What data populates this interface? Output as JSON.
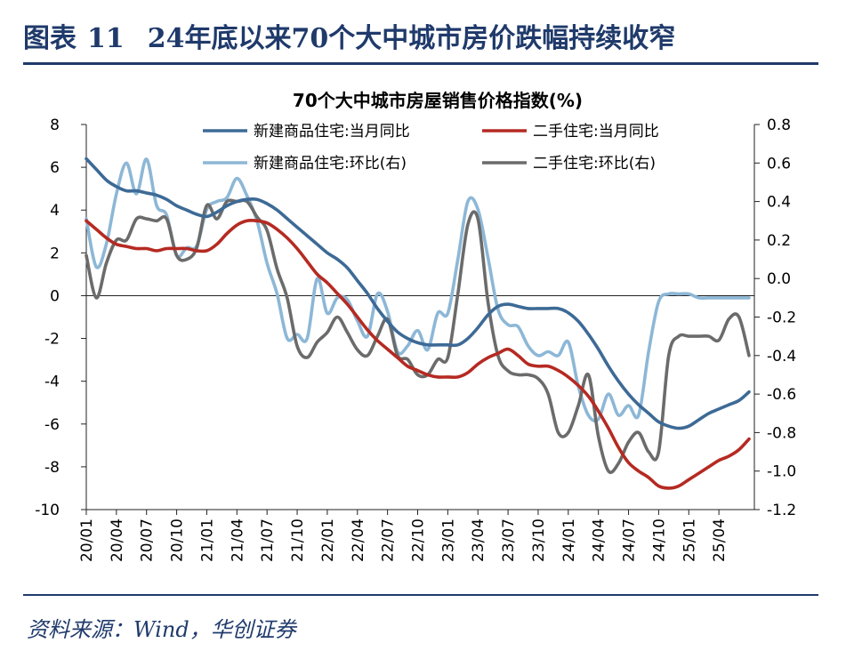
{
  "header": {
    "prefix": "图表",
    "number": "11",
    "title": "24年底以来70个大中城市房价跌幅持续收窄"
  },
  "footer": {
    "source": "资料来源：Wind，华创证券"
  },
  "colors": {
    "navy": "#1f3a6b",
    "series": [
      "#3d6a96",
      "#b52a22",
      "#8db7d6",
      "#6b6b6b"
    ]
  },
  "chart_data": {
    "type": "line",
    "title": "70个大中城市房屋销售价格指数(%)",
    "x": [
      "20/01",
      "20/04",
      "20/07",
      "20/10",
      "21/01",
      "21/04",
      "21/07",
      "21/10",
      "22/01",
      "22/04",
      "22/07",
      "22/10",
      "23/01",
      "23/04",
      "23/07",
      "23/10",
      "24/01",
      "24/04",
      "24/07",
      "24/10",
      "25/01",
      "25/04"
    ],
    "x_range": [
      "20/01",
      "25/04"
    ],
    "yleft": {
      "ylim": [
        -10,
        8
      ],
      "ticks": [
        "8",
        "6",
        "4",
        "2",
        "0",
        "-2",
        "-4",
        "-6",
        "-8",
        "-10"
      ]
    },
    "yright": {
      "ylim": [
        -1.2,
        0.8
      ],
      "ticks": [
        "0.8",
        "0.6",
        "0.4",
        "0.2",
        "0.0",
        "-0.2",
        "-0.4",
        "-0.6",
        "-0.8",
        "-1.0",
        "-1.2"
      ]
    },
    "grid": false,
    "legend": "top-center, two columns",
    "series": [
      {
        "name": "新建商品住宅:当月同比",
        "axis": "left",
        "points": [
          [
            0,
            6.4
          ],
          [
            1,
            5.9
          ],
          [
            2,
            5.4
          ],
          [
            3,
            5.1
          ],
          [
            4,
            4.9
          ],
          [
            5,
            4.9
          ],
          [
            6,
            4.8
          ],
          [
            7,
            4.7
          ],
          [
            8,
            4.5
          ],
          [
            9,
            4.2
          ],
          [
            10,
            4.0
          ],
          [
            11,
            3.8
          ],
          [
            12,
            3.7
          ],
          [
            13,
            3.9
          ],
          [
            14,
            4.2
          ],
          [
            15,
            4.4
          ],
          [
            16,
            4.5
          ],
          [
            17,
            4.5
          ],
          [
            18,
            4.3
          ],
          [
            19,
            4.0
          ],
          [
            20,
            3.6
          ],
          [
            21,
            3.2
          ],
          [
            22,
            2.8
          ],
          [
            23,
            2.4
          ],
          [
            24,
            2.0
          ],
          [
            25,
            1.7
          ],
          [
            26,
            1.3
          ],
          [
            27,
            0.7
          ],
          [
            28,
            0.1
          ],
          [
            29,
            -0.6
          ],
          [
            30,
            -1.2
          ],
          [
            31,
            -1.7
          ],
          [
            32,
            -2.0
          ],
          [
            33,
            -2.2
          ],
          [
            34,
            -2.3
          ],
          [
            35,
            -2.3
          ],
          [
            36,
            -2.3
          ],
          [
            37,
            -2.3
          ],
          [
            38,
            -2.0
          ],
          [
            39,
            -1.5
          ],
          [
            40,
            -0.9
          ],
          [
            41,
            -0.5
          ],
          [
            42,
            -0.4
          ],
          [
            43,
            -0.5
          ],
          [
            44,
            -0.6
          ],
          [
            45,
            -0.6
          ],
          [
            46,
            -0.6
          ],
          [
            47,
            -0.6
          ],
          [
            48,
            -0.8
          ],
          [
            49,
            -1.2
          ],
          [
            50,
            -1.8
          ],
          [
            51,
            -2.5
          ],
          [
            52,
            -3.3
          ],
          [
            53,
            -4.0
          ],
          [
            54,
            -4.6
          ],
          [
            55,
            -5.1
          ],
          [
            56,
            -5.5
          ],
          [
            57,
            -5.9
          ],
          [
            58,
            -6.1
          ],
          [
            59,
            -6.2
          ],
          [
            60,
            -6.1
          ],
          [
            61,
            -5.8
          ],
          [
            62,
            -5.5
          ],
          [
            63,
            -5.3
          ],
          [
            64,
            -5.1
          ],
          [
            65,
            -4.9
          ],
          [
            66,
            -4.5
          ]
        ]
      },
      {
        "name": "二手住宅:当月同比",
        "axis": "left",
        "points": [
          [
            0,
            3.5
          ],
          [
            1,
            3.1
          ],
          [
            2,
            2.7
          ],
          [
            3,
            2.4
          ],
          [
            4,
            2.3
          ],
          [
            5,
            2.2
          ],
          [
            6,
            2.2
          ],
          [
            7,
            2.1
          ],
          [
            8,
            2.2
          ],
          [
            9,
            2.2
          ],
          [
            10,
            2.2
          ],
          [
            11,
            2.1
          ],
          [
            12,
            2.1
          ],
          [
            13,
            2.4
          ],
          [
            14,
            2.9
          ],
          [
            15,
            3.3
          ],
          [
            16,
            3.5
          ],
          [
            17,
            3.5
          ],
          [
            18,
            3.4
          ],
          [
            19,
            3.1
          ],
          [
            20,
            2.7
          ],
          [
            21,
            2.2
          ],
          [
            22,
            1.6
          ],
          [
            23,
            1.0
          ],
          [
            24,
            0.6
          ],
          [
            25,
            0.1
          ],
          [
            26,
            -0.4
          ],
          [
            27,
            -1.0
          ],
          [
            28,
            -1.6
          ],
          [
            29,
            -2.1
          ],
          [
            30,
            -2.5
          ],
          [
            31,
            -2.9
          ],
          [
            32,
            -3.3
          ],
          [
            33,
            -3.5
          ],
          [
            34,
            -3.7
          ],
          [
            35,
            -3.8
          ],
          [
            36,
            -3.8
          ],
          [
            37,
            -3.8
          ],
          [
            38,
            -3.6
          ],
          [
            39,
            -3.2
          ],
          [
            40,
            -2.9
          ],
          [
            41,
            -2.7
          ],
          [
            42,
            -2.5
          ],
          [
            43,
            -2.8
          ],
          [
            44,
            -3.2
          ],
          [
            45,
            -3.3
          ],
          [
            46,
            -3.3
          ],
          [
            47,
            -3.5
          ],
          [
            48,
            -3.8
          ],
          [
            49,
            -4.2
          ],
          [
            50,
            -4.7
          ],
          [
            51,
            -5.4
          ],
          [
            52,
            -6.2
          ],
          [
            53,
            -7.1
          ],
          [
            54,
            -7.8
          ],
          [
            55,
            -8.2
          ],
          [
            56,
            -8.5
          ],
          [
            57,
            -8.9
          ],
          [
            58,
            -9.0
          ],
          [
            59,
            -8.9
          ],
          [
            60,
            -8.6
          ],
          [
            61,
            -8.3
          ],
          [
            62,
            -8.0
          ],
          [
            63,
            -7.7
          ],
          [
            64,
            -7.5
          ],
          [
            65,
            -7.2
          ],
          [
            66,
            -6.7
          ]
        ]
      },
      {
        "name": "新建商品住宅:环比(右)",
        "axis": "right",
        "points": [
          [
            0,
            0.31
          ],
          [
            1,
            0.06
          ],
          [
            2,
            0.18
          ],
          [
            3,
            0.44
          ],
          [
            4,
            0.6
          ],
          [
            5,
            0.44
          ],
          [
            6,
            0.62
          ],
          [
            7,
            0.38
          ],
          [
            8,
            0.33
          ],
          [
            9,
            0.12
          ],
          [
            10,
            0.16
          ],
          [
            11,
            0.17
          ],
          [
            12,
            0.36
          ],
          [
            13,
            0.4
          ],
          [
            14,
            0.42
          ],
          [
            15,
            0.52
          ],
          [
            16,
            0.43
          ],
          [
            17,
            0.3
          ],
          [
            18,
            0.08
          ],
          [
            19,
            -0.08
          ],
          [
            20,
            -0.31
          ],
          [
            21,
            -0.29
          ],
          [
            22,
            -0.31
          ],
          [
            23,
            0.0
          ],
          [
            24,
            -0.18
          ],
          [
            25,
            -0.1
          ],
          [
            26,
            -0.11
          ],
          [
            27,
            -0.22
          ],
          [
            28,
            -0.3
          ],
          [
            29,
            -0.08
          ],
          [
            30,
            -0.17
          ],
          [
            31,
            -0.38
          ],
          [
            32,
            -0.35
          ],
          [
            33,
            -0.27
          ],
          [
            34,
            -0.37
          ],
          [
            35,
            -0.18
          ],
          [
            36,
            -0.18
          ],
          [
            37,
            0.1
          ],
          [
            38,
            0.4
          ],
          [
            39,
            0.36
          ],
          [
            40,
            0.11
          ],
          [
            41,
            -0.16
          ],
          [
            42,
            -0.24
          ],
          [
            43,
            -0.25
          ],
          [
            44,
            -0.35
          ],
          [
            45,
            -0.4
          ],
          [
            46,
            -0.38
          ],
          [
            47,
            -0.4
          ],
          [
            48,
            -0.33
          ],
          [
            49,
            -0.56
          ],
          [
            50,
            -0.71
          ],
          [
            51,
            -0.73
          ],
          [
            52,
            -0.6
          ],
          [
            53,
            -0.71
          ],
          [
            54,
            -0.66
          ],
          [
            55,
            -0.71
          ],
          [
            56,
            -0.38
          ],
          [
            57,
            -0.12
          ],
          [
            58,
            -0.08
          ],
          [
            59,
            -0.08
          ],
          [
            60,
            -0.08
          ],
          [
            61,
            -0.1
          ],
          [
            62,
            -0.1
          ],
          [
            63,
            -0.1
          ],
          [
            64,
            -0.1
          ],
          [
            65,
            -0.1
          ],
          [
            66,
            -0.1
          ]
        ]
      },
      {
        "name": "二手住宅:环比(右)",
        "axis": "right",
        "points": [
          [
            0,
            0.12
          ],
          [
            1,
            -0.1
          ],
          [
            2,
            0.08
          ],
          [
            3,
            0.2
          ],
          [
            4,
            0.2
          ],
          [
            5,
            0.31
          ],
          [
            6,
            0.31
          ],
          [
            7,
            0.3
          ],
          [
            8,
            0.31
          ],
          [
            9,
            0.12
          ],
          [
            10,
            0.1
          ],
          [
            11,
            0.16
          ],
          [
            12,
            0.38
          ],
          [
            13,
            0.31
          ],
          [
            14,
            0.4
          ],
          [
            15,
            0.4
          ],
          [
            16,
            0.4
          ],
          [
            17,
            0.32
          ],
          [
            18,
            0.25
          ],
          [
            19,
            0.05
          ],
          [
            20,
            -0.1
          ],
          [
            21,
            -0.35
          ],
          [
            22,
            -0.41
          ],
          [
            23,
            -0.33
          ],
          [
            24,
            -0.28
          ],
          [
            25,
            -0.2
          ],
          [
            26,
            -0.28
          ],
          [
            27,
            -0.37
          ],
          [
            28,
            -0.4
          ],
          [
            29,
            -0.3
          ],
          [
            30,
            -0.21
          ],
          [
            31,
            -0.4
          ],
          [
            32,
            -0.42
          ],
          [
            33,
            -0.5
          ],
          [
            34,
            -0.5
          ],
          [
            35,
            -0.42
          ],
          [
            36,
            -0.41
          ],
          [
            37,
            -0.08
          ],
          [
            38,
            0.28
          ],
          [
            39,
            0.31
          ],
          [
            40,
            -0.12
          ],
          [
            41,
            -0.4
          ],
          [
            42,
            -0.48
          ],
          [
            43,
            -0.5
          ],
          [
            44,
            -0.5
          ],
          [
            45,
            -0.52
          ],
          [
            46,
            -0.6
          ],
          [
            47,
            -0.8
          ],
          [
            48,
            -0.8
          ],
          [
            49,
            -0.66
          ],
          [
            50,
            -0.5
          ],
          [
            51,
            -0.82
          ],
          [
            52,
            -1.0
          ],
          [
            53,
            -0.96
          ],
          [
            54,
            -0.85
          ],
          [
            55,
            -0.8
          ],
          [
            56,
            -0.9
          ],
          [
            57,
            -0.9
          ],
          [
            58,
            -0.4
          ],
          [
            59,
            -0.3
          ],
          [
            60,
            -0.3
          ],
          [
            61,
            -0.3
          ],
          [
            62,
            -0.3
          ],
          [
            63,
            -0.32
          ],
          [
            64,
            -0.21
          ],
          [
            65,
            -0.2
          ],
          [
            66,
            -0.4
          ]
        ]
      }
    ]
  }
}
